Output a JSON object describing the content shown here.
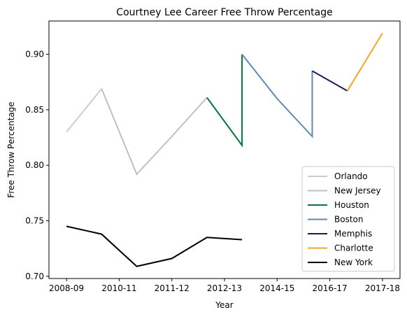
{
  "chart_data": {
    "type": "line",
    "title": "Courtney Lee Career Free Throw Percentage",
    "xlabel": "Year",
    "ylabel": "Free Throw Percentage",
    "x_ticks": [
      "2008-09",
      "2010-11",
      "2011-12",
      "2012-13",
      "2014-15",
      "2016-17",
      "2017-18"
    ],
    "xlim": [
      -0.5,
      9.5
    ],
    "y_ticks": [
      "0.70",
      "0.75",
      "0.80",
      "0.85",
      "0.90"
    ],
    "ylim": [
      0.698,
      0.93
    ],
    "grid": false,
    "legend_position": "bottom-right",
    "series": [
      {
        "name": "Orlando",
        "color": "#c4ced4",
        "x": [
          0,
          1
        ],
        "y": [
          0.83,
          0.869
        ]
      },
      {
        "name": "New Jersey",
        "color": "#bec0c2",
        "x": [
          1,
          2,
          3,
          4
        ],
        "y": [
          0.869,
          0.792,
          0.826,
          0.861
        ]
      },
      {
        "name": "Houston",
        "color": "#00793a",
        "x": [
          4,
          5,
          5
        ],
        "y": [
          0.861,
          0.818,
          0.9
        ]
      },
      {
        "name": "Boston",
        "color": "#6088b2",
        "x": [
          5,
          6,
          7,
          7
        ],
        "y": [
          0.9,
          0.86,
          0.826,
          0.885
        ]
      },
      {
        "name": "Memphis",
        "color": "#23195a",
        "x": [
          7,
          8
        ],
        "y": [
          0.885,
          0.867
        ]
      },
      {
        "name": "Charlotte",
        "color": "#f4a522",
        "x": [
          8,
          9
        ],
        "y": [
          0.867,
          0.919
        ]
      },
      {
        "name": "New York",
        "color": "#000000",
        "x": [
          0,
          1,
          2,
          3,
          4,
          5
        ],
        "y": [
          0.745,
          0.738,
          0.709,
          0.716,
          0.735,
          0.733
        ]
      }
    ]
  }
}
